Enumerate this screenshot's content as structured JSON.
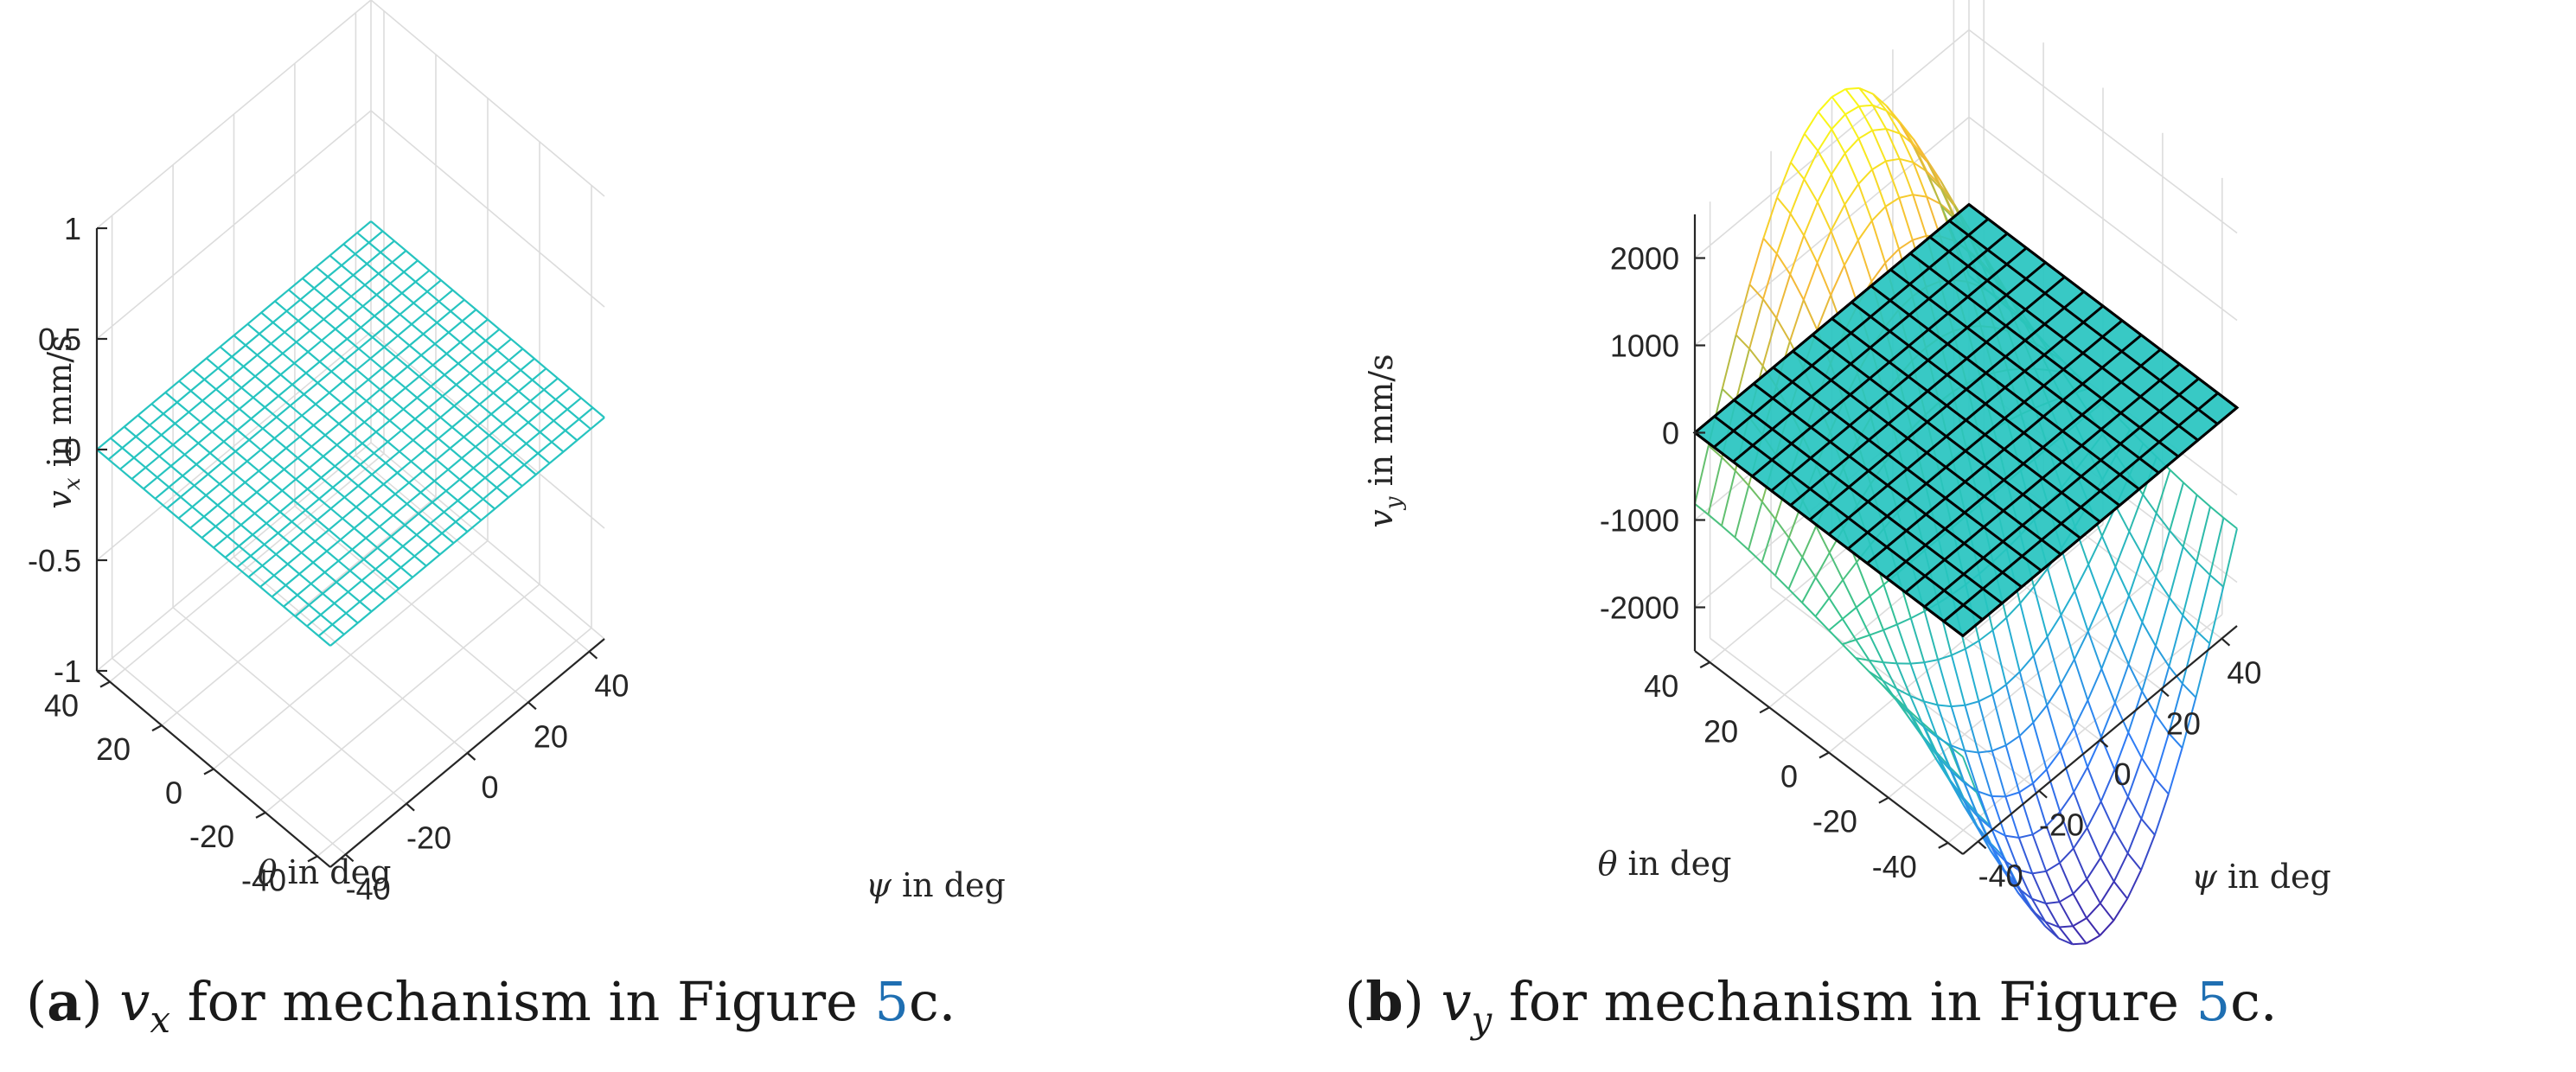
{
  "chart_data": [
    {
      "type": "surface",
      "id": "a",
      "caption": {
        "label": "a",
        "variable": "v",
        "subscript": "x",
        "text": " for mechanism in Figure ",
        "ref": "5",
        "suffix": "c."
      },
      "xlabel": {
        "symbol": "ψ",
        "text": " in deg"
      },
      "ylabel": {
        "symbol": "θ",
        "text": " in deg"
      },
      "zlabel": {
        "symbol": "v",
        "subscript": "x",
        "text": " in mm/s"
      },
      "x_ticks": [
        "-40",
        "-20",
        "0",
        "20",
        "40"
      ],
      "y_ticks": [
        "-40",
        "-20",
        "0",
        "20",
        "40"
      ],
      "z_ticks": [
        "-1",
        "-0.5",
        "0",
        "0.5",
        "1"
      ],
      "xlim": [
        -45,
        45
      ],
      "ylim": [
        -45,
        45
      ],
      "zlim": [
        -1,
        1
      ],
      "grid": true,
      "surfaces": [
        {
          "name": "",
          "style": "mesh",
          "color": "#27c4c0",
          "formula": "v_x = 0",
          "value": 0,
          "x_range": [
            -45,
            45
          ],
          "y_range": [
            -45,
            45
          ],
          "mesh_lines": 21
        }
      ]
    },
    {
      "type": "surface",
      "id": "b",
      "caption": {
        "label": "b",
        "variable": "v",
        "subscript": "y",
        "text": " for mechanism in Figure ",
        "ref": "5",
        "suffix": "c."
      },
      "xlabel": {
        "symbol": "ψ",
        "text": " in deg"
      },
      "ylabel": {
        "symbol": "θ",
        "text": " in deg"
      },
      "zlabel": {
        "symbol": "v",
        "subscript": "y",
        "text": " in mm/s"
      },
      "x_ticks": [
        "-40",
        "-20",
        "0",
        "20",
        "40"
      ],
      "y_ticks": [
        "-40",
        "-20",
        "0",
        "20",
        "40"
      ],
      "z_ticks": [
        "-2000",
        "-1000",
        "0",
        "1000",
        "2000"
      ],
      "xlim": [
        -45,
        45
      ],
      "ylim": [
        -45,
        45
      ],
      "zlim": [
        -2500,
        2500
      ],
      "grid": true,
      "colormap": [
        "#3e26a8",
        "#2f7cf6",
        "#25b1cf",
        "#35c38f",
        "#9ebc47",
        "#f5b938",
        "#f9fb15"
      ],
      "surfaces": [
        {
          "name": "",
          "style": "colormap-mesh",
          "formula": "v_y ≈ 3650·cos(ψ)·sin(θ) - 1100",
          "amplitude": 3650,
          "offset": -1100,
          "x_range": [
            -45,
            45
          ],
          "y_range": [
            -45,
            45
          ],
          "mesh_lines": 21
        },
        {
          "name": "",
          "style": "filled-plane",
          "color": "#27c4c0",
          "edge_color": "#000000",
          "value": 0,
          "x_range": [
            -45,
            45
          ],
          "y_range": [
            -45,
            45
          ],
          "mesh_lines": 15
        }
      ]
    }
  ]
}
